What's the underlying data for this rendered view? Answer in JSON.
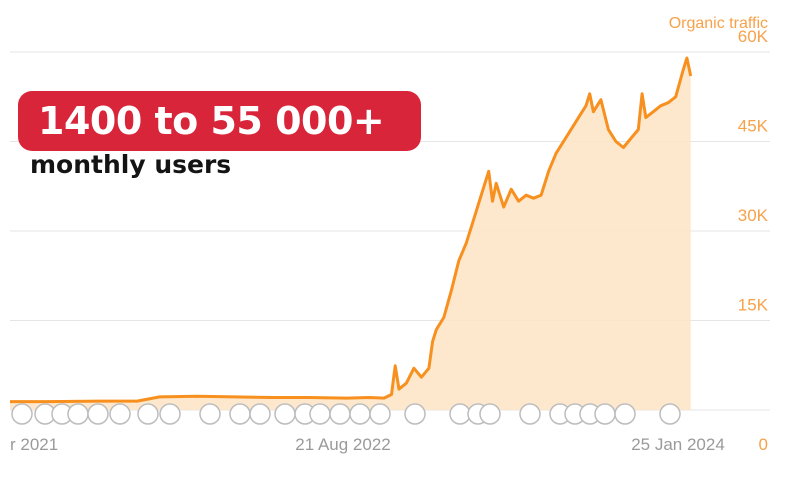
{
  "headline": "1400 to 55 000+",
  "subheadline": "monthly users",
  "colors": {
    "line": "#f7901e",
    "area": "#fde3c4",
    "grid": "#e6e6e6",
    "axis_text_right": "#f7a24a",
    "axis_text_bottom": "#9a9a9a",
    "badge": "#d9253a"
  },
  "chart_data": {
    "type": "area",
    "title": "",
    "series": [
      {
        "name": "Organic traffic"
      }
    ],
    "y_ticks": [
      0,
      15000,
      30000,
      45000,
      60000
    ],
    "y_tick_labels": [
      "0",
      "15K",
      "30K",
      "45K",
      "60K"
    ],
    "x_tick_labels": [
      "r 2021",
      "21 Aug 2022",
      "25 Jan 2024"
    ],
    "ylim": [
      0,
      60000
    ],
    "grid": true,
    "points": [
      [
        0,
        1400
      ],
      [
        0.05,
        1400
      ],
      [
        0.12,
        1500
      ],
      [
        0.17,
        1500
      ],
      [
        0.2,
        2200
      ],
      [
        0.25,
        2300
      ],
      [
        0.3,
        2200
      ],
      [
        0.35,
        2100
      ],
      [
        0.4,
        2100
      ],
      [
        0.45,
        2000
      ],
      [
        0.48,
        2100
      ],
      [
        0.5,
        2000
      ],
      [
        0.51,
        2600
      ],
      [
        0.515,
        7400
      ],
      [
        0.52,
        3500
      ],
      [
        0.53,
        4500
      ],
      [
        0.54,
        7000
      ],
      [
        0.55,
        5500
      ],
      [
        0.56,
        7000
      ],
      [
        0.565,
        11500
      ],
      [
        0.57,
        13500
      ],
      [
        0.58,
        15500
      ],
      [
        0.59,
        20000
      ],
      [
        0.6,
        25000
      ],
      [
        0.61,
        28000
      ],
      [
        0.62,
        32000
      ],
      [
        0.63,
        36000
      ],
      [
        0.64,
        40000
      ],
      [
        0.645,
        35000
      ],
      [
        0.65,
        38000
      ],
      [
        0.66,
        34000
      ],
      [
        0.67,
        37000
      ],
      [
        0.68,
        35000
      ],
      [
        0.69,
        36000
      ],
      [
        0.7,
        35500
      ],
      [
        0.71,
        36000
      ],
      [
        0.72,
        40000
      ],
      [
        0.73,
        43000
      ],
      [
        0.74,
        45000
      ],
      [
        0.75,
        47000
      ],
      [
        0.76,
        49000
      ],
      [
        0.77,
        51000
      ],
      [
        0.775,
        53000
      ],
      [
        0.78,
        50000
      ],
      [
        0.79,
        52000
      ],
      [
        0.8,
        47000
      ],
      [
        0.81,
        45000
      ],
      [
        0.82,
        44000
      ],
      [
        0.83,
        45500
      ],
      [
        0.84,
        47000
      ],
      [
        0.845,
        53000
      ],
      [
        0.85,
        49000
      ],
      [
        0.86,
        50000
      ],
      [
        0.87,
        51000
      ],
      [
        0.88,
        51500
      ],
      [
        0.89,
        52500
      ],
      [
        0.9,
        57000
      ],
      [
        0.905,
        59000
      ],
      [
        0.91,
        56000
      ]
    ],
    "x_range": [
      0,
      1
    ]
  }
}
